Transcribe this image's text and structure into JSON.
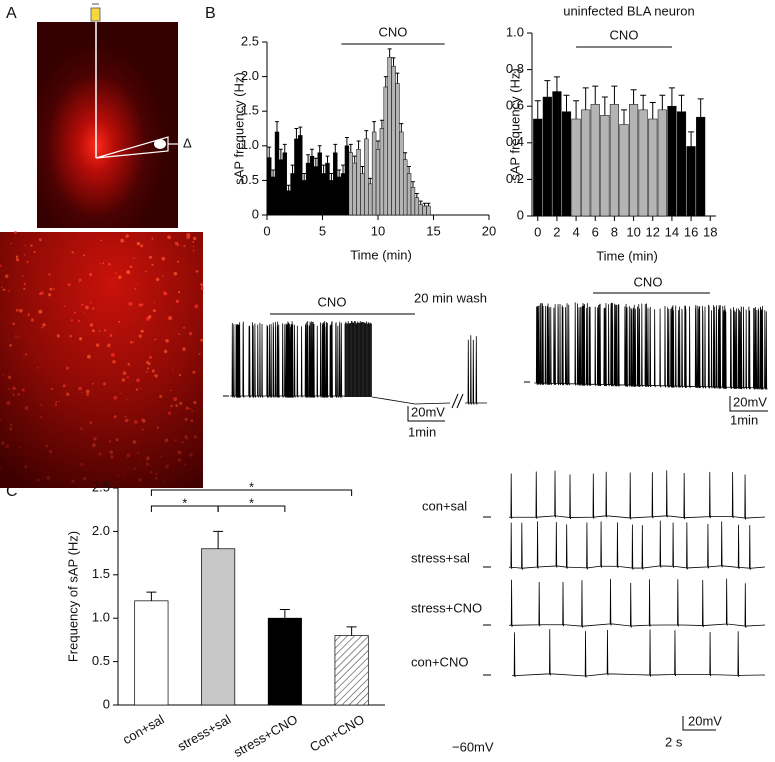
{
  "panel_labels": [
    "A",
    "B",
    "C"
  ],
  "chart_data": [
    {
      "type": "bar",
      "xlabel": "Time (min)",
      "ylabel": "sAP frequency (Hz)",
      "xlim": [
        0,
        20
      ],
      "ylim": [
        0,
        2.5
      ],
      "xticks": [
        0,
        5,
        10,
        15,
        20
      ],
      "yticks": [
        0,
        0.5,
        {
          "value": 1,
          "label": "1.0"
        },
        1.5,
        {
          "value": 2,
          "label": "2.0"
        },
        2.5
      ],
      "series": [
        {
          "color": "#000000",
          "x": [
            0.2,
            0.55,
            0.9,
            1.25,
            1.6,
            1.95,
            2.3,
            2.65,
            3.0,
            3.35,
            3.7,
            4.05,
            4.4,
            4.75,
            5.1,
            5.45,
            5.8,
            6.15,
            6.5,
            6.85,
            7.2
          ],
          "values": [
            0.83,
            0.55,
            1.2,
            0.8,
            0.9,
            0.35,
            0.6,
            1.1,
            1.15,
            0.5,
            0.75,
            0.85,
            0.7,
            0.9,
            0.6,
            0.75,
            0.5,
            0.9,
            0.55,
            0.6,
            1.0
          ],
          "errors": [
            0.15,
            0.1,
            0.15,
            0.15,
            0.12,
            0.08,
            0.12,
            0.15,
            0.12,
            0.1,
            0.12,
            0.1,
            0.12,
            0.1,
            0.12,
            0.1,
            0.1,
            0.12,
            0.1,
            0.12,
            0.12
          ]
        },
        {
          "color": "#b4b4b4",
          "x": [
            7.55,
            7.9,
            8.25,
            8.6,
            8.95,
            9.3,
            9.65,
            10.0,
            10.35,
            10.7,
            11.05,
            11.4,
            11.75,
            12.1,
            12.45,
            12.8,
            13.15,
            13.5,
            13.85,
            14.2,
            14.55
          ],
          "values": [
            0.9,
            0.75,
            0.95,
            0.6,
            1.1,
            0.45,
            1.2,
            0.95,
            1.25,
            1.85,
            2.28,
            2.15,
            1.9,
            1.2,
            0.8,
            0.6,
            0.4,
            0.25,
            0.15,
            0.13,
            0.13
          ],
          "errors": [
            0.12,
            0.1,
            0.12,
            0.1,
            0.12,
            0.08,
            0.15,
            0.12,
            0.12,
            0.15,
            0.12,
            0.12,
            0.15,
            0.12,
            0.1,
            0.1,
            0.08,
            0.06,
            0.05,
            0.04,
            0.04
          ]
        }
      ],
      "annotations": [
        {
          "text": "CNO",
          "x": [
            6.7,
            16
          ]
        }
      ]
    },
    {
      "type": "bar",
      "title": "uninfected BLA neuron",
      "xlabel": "Time (min)",
      "ylabel": "sAP frequency (Hz)",
      "xlim": [
        -0.6,
        18.6
      ],
      "ylim": [
        0,
        1
      ],
      "xticks": [
        0,
        2,
        4,
        6,
        8,
        10,
        12,
        14,
        16,
        18
      ],
      "yticks": [
        0,
        0.2,
        0.4,
        0.6,
        0.8,
        {
          "value": 1,
          "label": "1.0"
        }
      ],
      "series": [
        {
          "color": "#000000",
          "x": [
            0,
            1,
            2,
            3,
            14,
            15,
            16,
            17
          ],
          "values": [
            0.53,
            0.65,
            0.68,
            0.57,
            0.6,
            0.57,
            0.38,
            0.54
          ],
          "errors": [
            0.1,
            0.09,
            0.08,
            0.09,
            0.1,
            0.09,
            0.08,
            0.1
          ]
        },
        {
          "color": "#b4b4b4",
          "x": [
            4,
            5,
            6,
            7,
            8,
            9,
            10,
            11,
            12,
            13
          ],
          "values": [
            0.53,
            0.58,
            0.61,
            0.55,
            0.61,
            0.5,
            0.61,
            0.58,
            0.53,
            0.58
          ],
          "errors": [
            0.1,
            0.12,
            0.1,
            0.1,
            0.1,
            0.08,
            0.08,
            0.08,
            0.09,
            0.08
          ]
        }
      ],
      "annotations": [
        {
          "text": "CNO",
          "x": [
            4,
            14
          ]
        }
      ]
    },
    {
      "type": "bar",
      "ylabel": "Frequency of sAP (Hz)",
      "categories": [
        "con+sal",
        "stress+sal",
        "stress+CNO",
        "Con+CNO"
      ],
      "values": [
        1.2,
        1.8,
        1.0,
        0.8
      ],
      "errors": [
        0.1,
        0.2,
        0.1,
        0.1
      ],
      "colors": [
        "#ffffff",
        "#c8c8c8",
        "#000000",
        "hatch"
      ],
      "ylim": [
        0,
        2.5
      ],
      "yticks": [
        0,
        0.5,
        {
          "value": 1,
          "label": "1.0"
        },
        1.5,
        {
          "value": 2,
          "label": "2.0"
        },
        2.5
      ],
      "significance": [
        {
          "pair": [
            0,
            1
          ],
          "label": "*"
        },
        {
          "pair": [
            1,
            2
          ],
          "label": "*"
        },
        {
          "pair": [
            0,
            3
          ],
          "label": "*"
        }
      ]
    }
  ],
  "traces": {
    "b_left": {
      "drug": "CNO",
      "wash": "20 min wash",
      "scale_v": "20mV",
      "scale_t": "1min"
    },
    "b_right": {
      "drug": "CNO",
      "scale_v": "20mV",
      "scale_t": "1min"
    },
    "c": {
      "groups": [
        "con+sal",
        "stress+sal",
        "stress+CNO",
        "con+CNO"
      ],
      "resting": "−60mV",
      "scale_v": "20mV",
      "scale_t": "2 s"
    }
  }
}
